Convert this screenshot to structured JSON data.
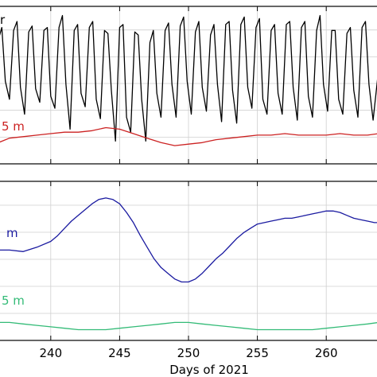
{
  "chart_data": [
    {
      "type": "line",
      "panel": "top",
      "xlabel": "",
      "ylabel": "",
      "xlim": [
        236.2,
        263.8
      ],
      "ylim": [
        0,
        100
      ],
      "xticks": [
        240,
        245,
        250,
        255,
        260
      ],
      "grid": true,
      "series": [
        {
          "name": "",
          "label_fragment": "r",
          "color": "#000000",
          "smooth": false,
          "x": [
            236.2,
            236.45,
            236.7,
            237.0,
            237.3,
            237.55,
            237.8,
            238.1,
            238.4,
            238.65,
            238.9,
            239.2,
            239.5,
            239.75,
            240.0,
            240.3,
            240.6,
            240.85,
            241.1,
            241.4,
            241.7,
            241.95,
            242.2,
            242.5,
            242.8,
            243.05,
            243.3,
            243.6,
            243.9,
            244.15,
            244.4,
            244.7,
            245.0,
            245.25,
            245.5,
            245.8,
            246.1,
            246.35,
            246.6,
            246.9,
            247.2,
            247.45,
            247.7,
            248.0,
            248.3,
            248.55,
            248.8,
            249.1,
            249.4,
            249.65,
            249.9,
            250.2,
            250.5,
            250.75,
            251.0,
            251.3,
            251.6,
            251.85,
            252.1,
            252.4,
            252.7,
            252.95,
            253.2,
            253.5,
            253.8,
            254.05,
            254.3,
            254.6,
            254.9,
            255.15,
            255.4,
            255.7,
            256.0,
            256.25,
            256.5,
            256.8,
            257.1,
            257.35,
            257.6,
            257.9,
            258.2,
            258.45,
            258.7,
            259.0,
            259.3,
            259.55,
            259.8,
            260.1,
            260.4,
            260.65,
            260.9,
            261.2,
            261.5,
            261.75,
            262.0,
            262.3,
            262.6,
            262.85,
            263.1,
            263.4,
            263.8
          ],
          "y": [
            80,
            88,
            52,
            40,
            86,
            92,
            48,
            30,
            85,
            89,
            47,
            38,
            86,
            88,
            42,
            34,
            88,
            96,
            50,
            20,
            86,
            90,
            44,
            35,
            88,
            92,
            40,
            27,
            86,
            84,
            46,
            12,
            88,
            90,
            28,
            18,
            85,
            83,
            40,
            12,
            78,
            86,
            44,
            28,
            86,
            91,
            50,
            28,
            89,
            95,
            52,
            30,
            85,
            92,
            48,
            32,
            83,
            90,
            50,
            25,
            90,
            92,
            46,
            24,
            90,
            95,
            48,
            34,
            88,
            94,
            40,
            30,
            86,
            90,
            44,
            30,
            90,
            92,
            48,
            26,
            88,
            92,
            42,
            28,
            86,
            96,
            50,
            32,
            86,
            86,
            40,
            30,
            84,
            88,
            46,
            28,
            88,
            92,
            50,
            26,
            60
          ]
        },
        {
          "name": "",
          "label_fragment": "5 m",
          "color": "#cc2222",
          "smooth": true,
          "x": [
            236.2,
            237,
            238,
            239,
            240,
            241,
            242,
            243,
            244,
            245,
            246,
            247,
            248,
            249,
            250,
            251,
            252,
            253,
            254,
            255,
            256,
            257,
            258,
            259,
            260,
            261,
            262,
            263,
            263.8
          ],
          "y": [
            11,
            14,
            15,
            16,
            17,
            18,
            18,
            19,
            21,
            20,
            17,
            14,
            11,
            9,
            10,
            11,
            13,
            14,
            15,
            16,
            16,
            17,
            16,
            16,
            16,
            17,
            16,
            16,
            17
          ]
        }
      ]
    },
    {
      "type": "line",
      "panel": "bottom",
      "xlabel": "Days  of  2021",
      "ylabel": "",
      "xlim": [
        236.2,
        263.8
      ],
      "ylim": [
        0,
        100
      ],
      "xticks": [
        240,
        245,
        250,
        255,
        260
      ],
      "grid": true,
      "series": [
        {
          "name": "",
          "label_fragment": "m",
          "color": "#1a1aa0",
          "smooth": false,
          "x": [
            236.2,
            237,
            238,
            239,
            240,
            240.5,
            241,
            241.5,
            242,
            242.5,
            243,
            243.5,
            244,
            244.5,
            245,
            245.5,
            246,
            246.5,
            247,
            247.5,
            248,
            248.5,
            249,
            249.5,
            250,
            250.5,
            251,
            251.5,
            252,
            252.5,
            253,
            253.5,
            254,
            254.5,
            255,
            255.5,
            256,
            256.5,
            257,
            257.5,
            258,
            258.5,
            259,
            259.5,
            260,
            260.5,
            261,
            261.5,
            262,
            262.5,
            263,
            263.5,
            263.8
          ],
          "y": [
            58,
            58,
            57,
            60,
            64,
            68,
            73,
            78,
            82,
            86,
            90,
            93,
            94,
            93,
            90,
            84,
            77,
            68,
            60,
            52,
            46,
            42,
            38,
            36,
            36,
            38,
            42,
            47,
            52,
            56,
            61,
            66,
            70,
            73,
            76,
            77,
            78,
            79,
            80,
            80,
            81,
            82,
            83,
            84,
            85,
            85,
            84,
            82,
            80,
            79,
            78,
            77,
            77
          ]
        },
        {
          "name": "",
          "label_fragment": "5 m",
          "color": "#33bb77",
          "smooth": true,
          "x": [
            236.2,
            237,
            238,
            239,
            240,
            241,
            242,
            243,
            244,
            245,
            246,
            247,
            248,
            249,
            250,
            251,
            252,
            253,
            254,
            255,
            256,
            257,
            258,
            259,
            260,
            261,
            262,
            263,
            263.8
          ],
          "y": [
            8,
            8,
            7,
            6,
            5,
            4,
            3,
            3,
            3,
            4,
            5,
            6,
            7,
            8,
            8,
            7,
            6,
            5,
            4,
            3,
            3,
            3,
            3,
            3,
            4,
            5,
            6,
            7,
            8
          ]
        }
      ]
    }
  ]
}
